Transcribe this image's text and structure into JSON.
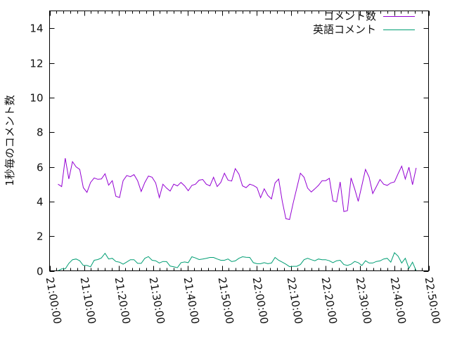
{
  "chart_data": {
    "type": "line",
    "title": "",
    "xlabel": "",
    "ylabel": "1秒毎のコメント数",
    "ylim": [
      0,
      15
    ],
    "yticks": [
      "0",
      "2",
      "4",
      "6",
      "8",
      "10",
      "12",
      "14"
    ],
    "xlim": [
      "21:00:00",
      "22:50:00"
    ],
    "xticks": [
      "21:00:00",
      "21:10:00",
      "21:20:00",
      "21:30:00",
      "21:40:00",
      "21:50:00",
      "22:00:00",
      "22:10:00",
      "22:20:00",
      "22:30:00",
      "22:40:00",
      "22:50:00"
    ],
    "grid": false,
    "legend_position": "top-right",
    "x": [
      "21:02:27",
      "21:03:30",
      "21:04:33",
      "21:05:36",
      "21:06:39",
      "21:07:42",
      "21:08:45",
      "21:09:48",
      "21:10:51",
      "21:11:54",
      "21:12:57",
      "21:14:00",
      "21:15:03",
      "21:16:06",
      "21:17:09",
      "21:18:12",
      "21:19:15",
      "21:20:18",
      "21:21:21",
      "21:22:24",
      "21:23:27",
      "21:24:30",
      "21:25:33",
      "21:26:36",
      "21:27:39",
      "21:28:42",
      "21:29:45",
      "21:30:48",
      "21:31:51",
      "21:32:54",
      "21:33:57",
      "21:35:00",
      "21:36:03",
      "21:37:06",
      "21:38:09",
      "21:39:12",
      "21:40:15",
      "21:41:18",
      "21:42:21",
      "21:43:24",
      "21:44:27",
      "21:45:30",
      "21:46:33",
      "21:47:36",
      "21:48:39",
      "21:49:42",
      "21:50:45",
      "21:51:48",
      "21:52:51",
      "21:53:54",
      "21:54:57",
      "21:56:00",
      "21:57:03",
      "21:58:06",
      "21:59:09",
      "22:00:12",
      "22:01:15",
      "22:02:18",
      "22:03:21",
      "22:04:24",
      "22:05:27",
      "22:06:30",
      "22:07:33",
      "22:08:36",
      "22:09:39",
      "22:10:42",
      "22:11:45",
      "22:12:48",
      "22:13:51",
      "22:14:54",
      "22:15:57",
      "22:17:00",
      "22:18:03",
      "22:19:06",
      "22:20:09",
      "22:21:12",
      "22:22:15",
      "22:23:18",
      "22:24:21",
      "22:25:24",
      "22:26:27",
      "22:27:30",
      "22:28:33",
      "22:29:36",
      "22:30:39",
      "22:31:42",
      "22:32:45",
      "22:33:48",
      "22:34:51",
      "22:35:54",
      "22:36:57",
      "22:38:00",
      "22:39:03",
      "22:40:06",
      "22:41:09",
      "22:42:12",
      "22:43:15",
      "22:44:18",
      "22:45:21",
      "22:46:24"
    ],
    "series": [
      {
        "name": "コメント数",
        "color": "#9400d3",
        "values": [
          5.0,
          4.86,
          6.5,
          5.3,
          6.3,
          6.0,
          5.85,
          4.8,
          4.53,
          5.1,
          5.36,
          5.28,
          5.3,
          5.6,
          4.94,
          5.2,
          4.3,
          4.23,
          5.2,
          5.5,
          5.43,
          5.55,
          5.2,
          4.58,
          5.1,
          5.47,
          5.4,
          5.07,
          4.23,
          5.0,
          4.77,
          4.6,
          5.0,
          4.9,
          5.1,
          4.9,
          4.62,
          4.93,
          5.0,
          5.23,
          5.27,
          5.0,
          4.9,
          5.4,
          4.86,
          5.1,
          5.63,
          5.23,
          5.18,
          5.9,
          5.58,
          4.9,
          4.8,
          5.0,
          4.93,
          4.8,
          4.22,
          4.73,
          4.35,
          4.15,
          5.07,
          5.3,
          4.0,
          3.01,
          2.96,
          3.9,
          4.77,
          5.63,
          5.4,
          4.77,
          4.55,
          4.73,
          4.93,
          5.2,
          5.2,
          5.34,
          4.04,
          3.98,
          5.13,
          3.42,
          3.47,
          5.36,
          4.73,
          4.01,
          4.93,
          5.85,
          5.4,
          4.46,
          4.86,
          5.27,
          5.0,
          4.93,
          5.07,
          5.13,
          5.6,
          6.04,
          5.3,
          5.98,
          4.97,
          5.94
        ]
      },
      {
        "name": "英語コメント",
        "color": "#009e73",
        "values": [
          0.0,
          0.11,
          0.11,
          0.43,
          0.64,
          0.68,
          0.58,
          0.31,
          0.31,
          0.23,
          0.61,
          0.65,
          0.74,
          1.01,
          0.68,
          0.72,
          0.54,
          0.5,
          0.38,
          0.51,
          0.64,
          0.64,
          0.43,
          0.43,
          0.72,
          0.82,
          0.61,
          0.58,
          0.45,
          0.54,
          0.53,
          0.27,
          0.23,
          0.18,
          0.47,
          0.51,
          0.47,
          0.81,
          0.74,
          0.65,
          0.68,
          0.72,
          0.77,
          0.77,
          0.68,
          0.61,
          0.61,
          0.68,
          0.53,
          0.57,
          0.72,
          0.81,
          0.78,
          0.77,
          0.47,
          0.41,
          0.41,
          0.47,
          0.41,
          0.45,
          0.77,
          0.61,
          0.5,
          0.38,
          0.24,
          0.26,
          0.26,
          0.36,
          0.64,
          0.72,
          0.64,
          0.58,
          0.68,
          0.64,
          0.64,
          0.58,
          0.47,
          0.58,
          0.61,
          0.36,
          0.31,
          0.38,
          0.54,
          0.47,
          0.31,
          0.58,
          0.45,
          0.45,
          0.54,
          0.57,
          0.68,
          0.72,
          0.5,
          1.04,
          0.85,
          0.45,
          0.72,
          0.14,
          0.5,
          0.0
        ]
      }
    ]
  }
}
